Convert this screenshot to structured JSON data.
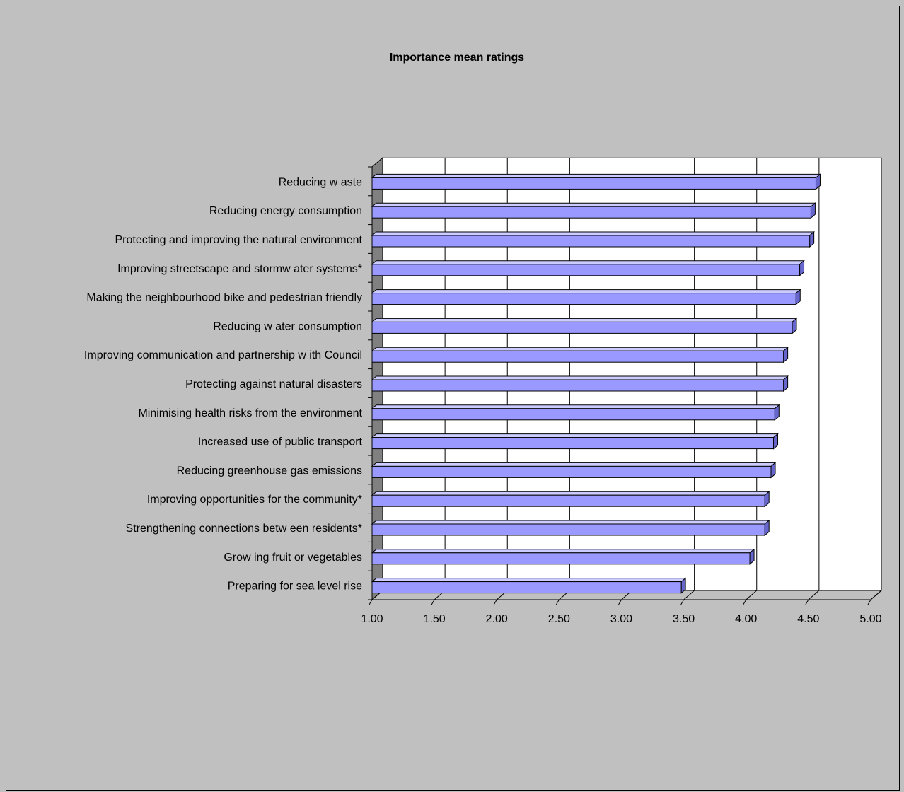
{
  "chart_data": {
    "type": "bar",
    "orientation": "horizontal",
    "title": "Importance mean ratings",
    "categories": [
      "Reducing w aste",
      "Reducing energy consumption",
      "Protecting and improving the natural environment",
      "Improving streetscape and stormw ater systems*",
      "Making the neighbourhood bike and pedestrian friendly",
      "Reducing w ater consumption",
      "Improving communication and partnership w ith Council",
      "Protecting against natural disasters",
      "Minimising health risks from the environment",
      "Increased use of public transport",
      "Reducing greenhouse gas emissions",
      "Improving opportunities for the community*",
      "Strengthening connections betw een residents*",
      "Grow ing fruit or vegetables",
      "Preparing for sea level rise"
    ],
    "values": [
      4.56,
      4.52,
      4.51,
      4.43,
      4.4,
      4.37,
      4.3,
      4.3,
      4.23,
      4.22,
      4.2,
      4.15,
      4.15,
      4.03,
      3.48
    ],
    "xlim": [
      1.0,
      5.0
    ],
    "x_ticks": [
      "1.00",
      "1.50",
      "2.00",
      "2.50",
      "3.00",
      "3.50",
      "4.00",
      "4.50",
      "5.00"
    ],
    "grid": "vertical",
    "legend": "none",
    "colors": {
      "background": "#c0c0c0",
      "plot_area": "#ffffff",
      "side_wall": "#808080",
      "bar_front": "#9999ff",
      "bar_top": "#ccccff",
      "bar_side": "#6666cc"
    }
  }
}
